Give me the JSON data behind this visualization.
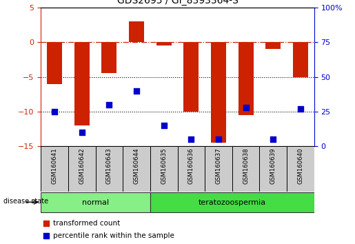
{
  "title": "GDS2695 / GI_8393364-S",
  "samples": [
    "GSM160641",
    "GSM160642",
    "GSM160643",
    "GSM160644",
    "GSM160635",
    "GSM160636",
    "GSM160637",
    "GSM160638",
    "GSM160639",
    "GSM160640"
  ],
  "transformed_count": [
    -6.0,
    -12.0,
    -4.5,
    3.0,
    -0.5,
    -10.0,
    -14.5,
    -10.5,
    -1.0,
    -5.0
  ],
  "percentile_rank": [
    25,
    10,
    30,
    40,
    15,
    5,
    5,
    28,
    5,
    27
  ],
  "ylim_left": [
    -15,
    5
  ],
  "ylim_right": [
    0,
    100
  ],
  "yticks_left": [
    -15,
    -10,
    -5,
    0,
    5
  ],
  "yticks_right": [
    0,
    25,
    50,
    75,
    100
  ],
  "bar_color": "#cc2200",
  "dot_color": "#0000cc",
  "hline_color": "#cc2200",
  "left_axis_color": "#cc2200",
  "right_axis_color": "#0000cc",
  "bar_width": 0.55,
  "dot_size": 28,
  "normal_color": "#88ee88",
  "terato_color": "#44dd44",
  "sample_box_color": "#cccccc",
  "groups_info": [
    {
      "label": "normal",
      "start": 0,
      "end": 3
    },
    {
      "label": "teratozoospermia",
      "start": 4,
      "end": 9
    }
  ]
}
